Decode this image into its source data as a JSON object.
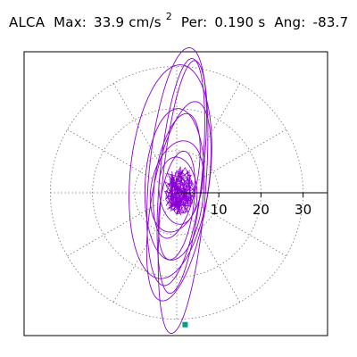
{
  "header": {
    "station": "ALCA",
    "max_label": "Max:",
    "max_value": "33.9 cm/s",
    "max_exponent": "2",
    "per_label": "Per:",
    "per_value": "0.190 s",
    "ang_label": "Ang:",
    "ang_value": "-83.7"
  },
  "chart_data": {
    "type": "polar-particle-motion",
    "title": "",
    "radial_ticks": [
      10,
      20,
      30
    ],
    "rmax": 33.9,
    "grid": true,
    "colors": {
      "trace": "#8a00d4",
      "grid": "#777777",
      "marker": "#00a080",
      "axis": "#000000"
    },
    "marker": {
      "x": 2.0,
      "y": -31.3
    },
    "ellipses": [
      {
        "cx": 0.0,
        "cy": 6.2,
        "a": 28.4,
        "b": 6.4,
        "ang": 83.7
      },
      {
        "cx": 1.0,
        "cy": 4.0,
        "a": 28.0,
        "b": 5.0,
        "ang": 84.5
      },
      {
        "cx": 1.5,
        "cy": -1.0,
        "a": 32.5,
        "b": 5.2,
        "ang": 85.0
      },
      {
        "cx": -1.5,
        "cy": 5.0,
        "a": 25.5,
        "b": 9.5,
        "ang": 84.0
      },
      {
        "cx": 0.5,
        "cy": -2.0,
        "a": 24.0,
        "b": 6.5,
        "ang": 80.0
      },
      {
        "cx": -0.5,
        "cy": 2.0,
        "a": 18.0,
        "b": 7.0,
        "ang": 87.0
      },
      {
        "cx": 0.0,
        "cy": 4.0,
        "a": 15.0,
        "b": 5.0,
        "ang": 80.0
      },
      {
        "cx": 0.0,
        "cy": 1.5,
        "a": 11.0,
        "b": 6.0,
        "ang": 78.0
      },
      {
        "cx": 0.3,
        "cy": 0.5,
        "a": 8.0,
        "b": 4.5,
        "ang": 95.0
      },
      {
        "cx": 0.0,
        "cy": -3.0,
        "a": 13.0,
        "b": 4.0,
        "ang": 82.0
      }
    ],
    "cluster": {
      "cx": 0.5,
      "cy": 0.5,
      "rx": 4.0,
      "ry": 6.0,
      "points": 140
    }
  }
}
